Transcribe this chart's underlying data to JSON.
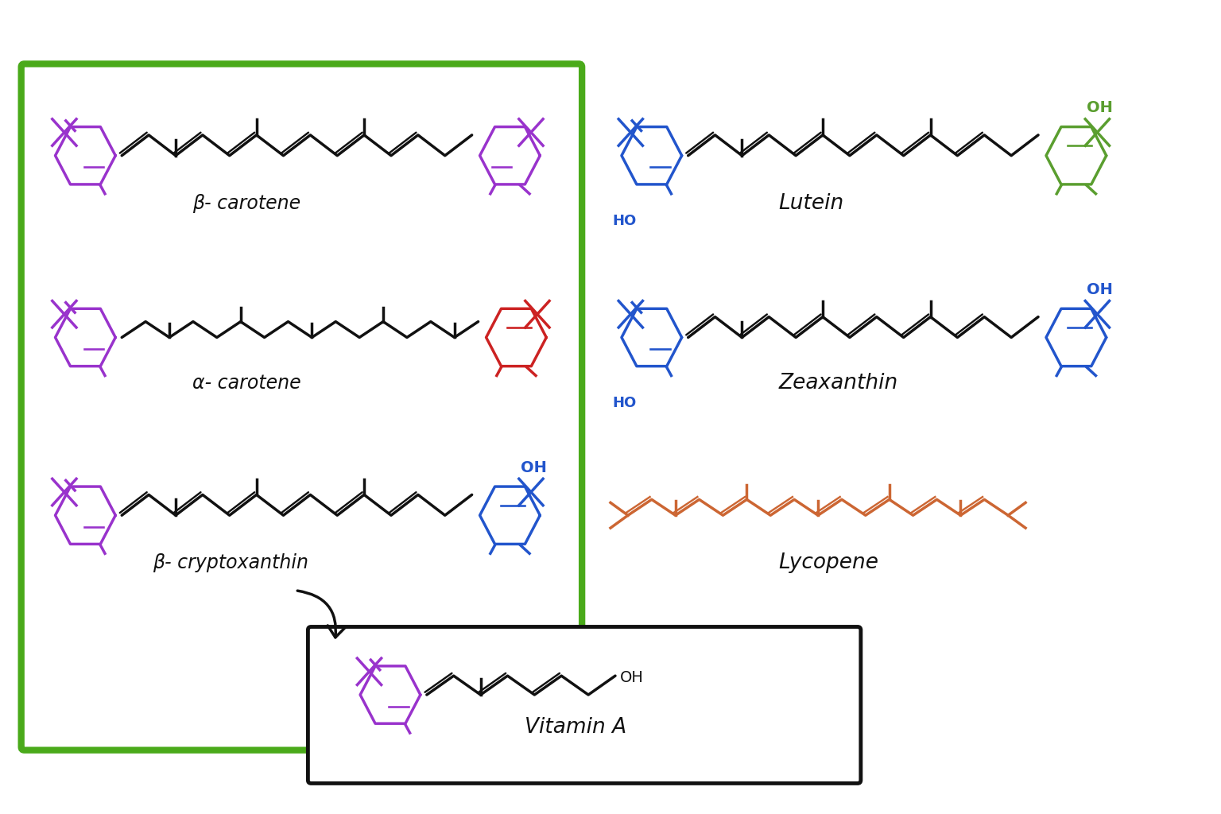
{
  "bg_color": "#ffffff",
  "purple": "#9933cc",
  "red": "#cc2222",
  "blue": "#2255cc",
  "green_ring": "#5a9e2f",
  "orange": "#cc6633",
  "black": "#111111",
  "green_box_color": "#4aaa1a",
  "labels": {
    "beta_carotene": "β- carotene",
    "alpha_carotene": "α- carotene",
    "beta_cryptoxanthin": "β- cryptoxanthin",
    "lutein": "Lutein",
    "zeaxanthin": "Zeaxanthin",
    "lycopene": "Lycopene",
    "vitamin_a": "Vitamin A"
  },
  "lw_mol": 2.5,
  "lw_ring": 2.5,
  "fs_label": 17
}
